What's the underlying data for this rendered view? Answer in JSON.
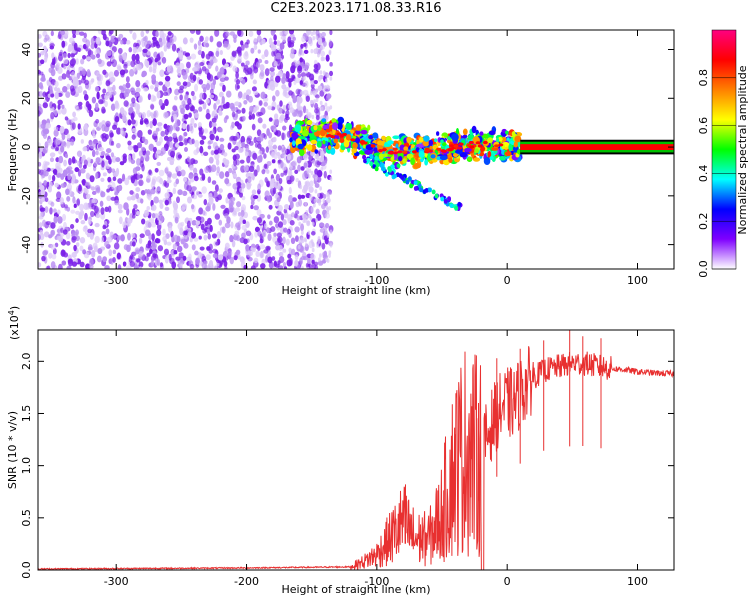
{
  "title": "C2E3.2023.171.08.33.R16",
  "chart_data": [
    {
      "type": "heatmap",
      "title": "C2E3.2023.171.08.33.R16",
      "xlabel": "Height of straight line (km)",
      "ylabel": "Frequency (Hz)",
      "xlim": [
        -360,
        128
      ],
      "ylim": [
        -50,
        48
      ],
      "x_ticks": [
        -300,
        -200,
        -100,
        0,
        100
      ],
      "x_tick_labels": [
        "-300",
        "-200",
        "-100",
        "0",
        "100"
      ],
      "y_ticks": [
        -40,
        -20,
        0,
        20,
        40
      ],
      "y_tick_labels": [
        "-40",
        "-20",
        "0",
        "20",
        "40"
      ],
      "colorbar": {
        "label": "Normalized spectral amplitude",
        "range": [
          0.0,
          1.0
        ],
        "ticks": [
          0.0,
          0.2,
          0.4,
          0.6,
          0.8
        ],
        "tick_labels": [
          "0.0",
          "0.2",
          "0.4",
          "0.6",
          "0.8"
        ],
        "colormap": [
          "#ffffff",
          "#7f00ff",
          "#0000ff",
          "#00ffff",
          "#00ff00",
          "#ffff00",
          "#ff8000",
          "#ff0000",
          "#ff0080"
        ]
      },
      "regions": [
        {
          "name": "noise",
          "x_range": [
            -360,
            -135
          ],
          "freq_range": [
            -50,
            48
          ],
          "amplitude": 0.05
        },
        {
          "name": "signal",
          "x_range": [
            -165,
            10
          ],
          "center_freq_points": [
            [
              -165,
              4
            ],
            [
              -130,
              5
            ],
            [
              -110,
              2
            ],
            [
              -90,
              -2
            ],
            [
              -70,
              -1
            ],
            [
              -50,
              -1
            ],
            [
              -30,
              1
            ],
            [
              -10,
              1
            ],
            [
              10,
              0
            ]
          ],
          "amplitude": 0.6
        },
        {
          "name": "tone",
          "x_range": [
            10,
            128
          ],
          "freq": 0,
          "amplitude": 1.0
        }
      ]
    },
    {
      "type": "line",
      "xlabel": "Height of straight line (km)",
      "ylabel": "SNR (10 * v/v)",
      "multiplier_label": "(x10",
      "multiplier_exponent": "4",
      "multiplier_suffix": ")",
      "xlim": [
        -360,
        128
      ],
      "ylim": [
        0,
        2.3
      ],
      "x_ticks": [
        -300,
        -200,
        -100,
        0,
        100
      ],
      "x_tick_labels": [
        "-300",
        "-200",
        "-100",
        "0",
        "100"
      ],
      "y_ticks": [
        0,
        0.5,
        1.0,
        1.5,
        2.0
      ],
      "y_tick_labels": [
        "0.0",
        "0.5",
        "1.0",
        "1.5",
        "2.0"
      ],
      "color": "#e83030",
      "envelope": {
        "x": [
          -360,
          -200,
          -120,
          -110,
          -100,
          -90,
          -80,
          -70,
          -60,
          -50,
          -45,
          -40,
          -35,
          -30,
          -25,
          -20,
          -15,
          -10,
          -5,
          0,
          5,
          10,
          20,
          30,
          40,
          50,
          60,
          70,
          80,
          90,
          100,
          110,
          128
        ],
        "y": [
          0.01,
          0.02,
          0.03,
          0.08,
          0.15,
          0.3,
          0.45,
          0.3,
          0.3,
          0.55,
          0.8,
          1.0,
          1.1,
          1.2,
          1.1,
          1.1,
          1.3,
          1.45,
          1.55,
          1.6,
          1.6,
          1.7,
          1.85,
          1.92,
          1.95,
          1.98,
          1.98,
          1.95,
          1.93,
          1.92,
          1.9,
          1.89,
          1.88
        ]
      },
      "spikes": [
        {
          "x": -78,
          "y": 0.82
        },
        {
          "x": -72,
          "y": 0.38
        },
        {
          "x": -55,
          "y": 0.48
        },
        {
          "x": -40,
          "y": 1.3
        },
        {
          "x": -28,
          "y": 1.4
        },
        {
          "x": -22,
          "y": 1.6
        },
        {
          "x": -8,
          "y": 2.03
        },
        {
          "x": 10,
          "y": 2.12
        },
        {
          "x": 28,
          "y": 2.2
        },
        {
          "x": 48,
          "y": 2.3
        },
        {
          "x": 58,
          "y": 2.24
        },
        {
          "x": 72,
          "y": 2.22
        }
      ]
    }
  ]
}
